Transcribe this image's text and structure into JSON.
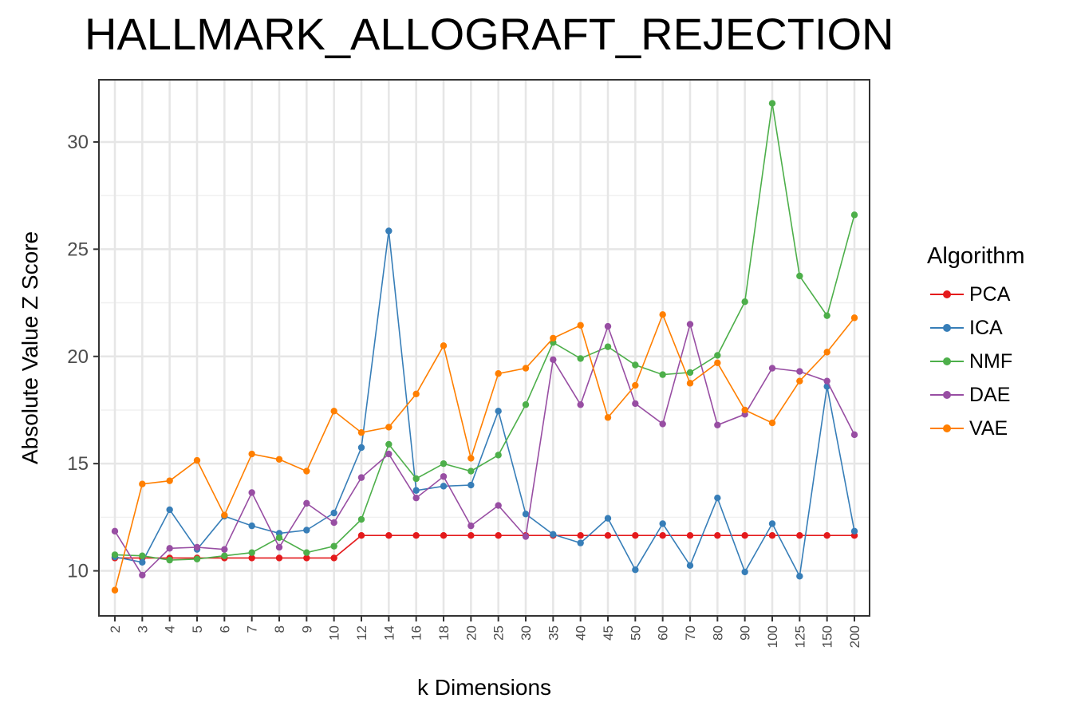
{
  "title": "HALLMARK_ALLOGRAFT_REJECTION",
  "legend_title": "Algorithm",
  "chart_data": {
    "type": "line",
    "title": "HALLMARK_ALLOGRAFT_REJECTION",
    "xlabel": "k Dimensions",
    "ylabel": "Absolute Value Z Score",
    "categories": [
      "2",
      "3",
      "4",
      "5",
      "6",
      "7",
      "8",
      "9",
      "10",
      "12",
      "14",
      "16",
      "18",
      "20",
      "25",
      "30",
      "35",
      "40",
      "45",
      "50",
      "60",
      "70",
      "80",
      "90",
      "100",
      "125",
      "150",
      "200"
    ],
    "ylim": [
      7.9,
      32.9
    ],
    "yticks": [
      10,
      15,
      20,
      25,
      30
    ],
    "grid": true,
    "legend_position": "right",
    "series": [
      {
        "name": "PCA",
        "color": "#E41A1C",
        "values": [
          10.6,
          10.6,
          10.6,
          10.6,
          10.6,
          10.6,
          10.6,
          10.6,
          10.6,
          11.65,
          11.65,
          11.65,
          11.65,
          11.65,
          11.65,
          11.65,
          11.65,
          11.65,
          11.65,
          11.65,
          11.65,
          11.65,
          11.65,
          11.65,
          11.65,
          11.65,
          11.65,
          11.65
        ]
      },
      {
        "name": "ICA",
        "color": "#377EB8",
        "values": [
          10.65,
          10.4,
          12.85,
          11.0,
          12.55,
          12.1,
          11.75,
          11.9,
          12.7,
          15.75,
          25.85,
          13.75,
          13.95,
          14.0,
          17.45,
          12.65,
          11.7,
          11.3,
          12.45,
          10.05,
          12.2,
          10.25,
          13.4,
          9.95,
          12.2,
          9.75,
          18.6,
          11.85
        ]
      },
      {
        "name": "NMF",
        "color": "#4DAF4A",
        "values": [
          10.75,
          10.7,
          10.5,
          10.55,
          10.7,
          10.85,
          11.55,
          10.85,
          11.15,
          12.4,
          15.9,
          14.3,
          15.0,
          14.65,
          15.4,
          17.75,
          20.65,
          19.9,
          20.45,
          19.6,
          19.15,
          19.25,
          20.05,
          22.55,
          31.8,
          23.75,
          21.9,
          26.6
        ]
      },
      {
        "name": "DAE",
        "color": "#984EA3",
        "values": [
          11.85,
          9.8,
          11.05,
          11.1,
          11.0,
          13.65,
          11.1,
          13.15,
          12.25,
          14.35,
          15.45,
          13.4,
          14.4,
          12.1,
          13.05,
          11.6,
          19.85,
          17.75,
          21.4,
          17.8,
          16.85,
          21.5,
          16.8,
          17.3,
          19.45,
          19.3,
          18.85,
          16.35
        ]
      },
      {
        "name": "VAE",
        "color": "#FF7F00",
        "values": [
          9.1,
          14.05,
          14.2,
          15.15,
          12.6,
          15.45,
          15.2,
          14.65,
          17.45,
          16.45,
          16.7,
          18.25,
          20.5,
          15.25,
          19.2,
          19.45,
          20.85,
          21.45,
          17.15,
          18.65,
          21.95,
          18.75,
          19.7,
          17.5,
          16.9,
          18.85,
          20.2,
          21.8
        ]
      }
    ]
  }
}
